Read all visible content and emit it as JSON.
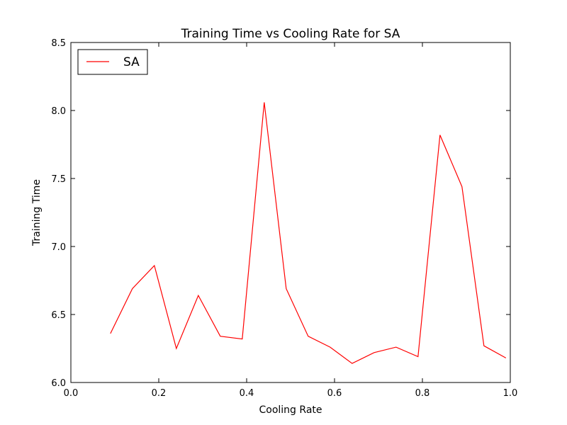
{
  "chart_data": {
    "type": "line",
    "title": "Training Time vs Cooling Rate for SA",
    "xlabel": "Cooling Rate",
    "ylabel": "Training Time",
    "xlim": [
      0.0,
      1.0
    ],
    "ylim": [
      6.0,
      8.5
    ],
    "x_ticks": [
      "0.0",
      "0.2",
      "0.4",
      "0.6",
      "0.8",
      "1.0"
    ],
    "y_ticks": [
      "6.0",
      "6.5",
      "7.0",
      "7.5",
      "8.0",
      "8.5"
    ],
    "grid": false,
    "legend_position": "top-left",
    "series": [
      {
        "name": "SA",
        "color": "#ff0000",
        "x": [
          0.09,
          0.14,
          0.19,
          0.24,
          0.29,
          0.34,
          0.39,
          0.44,
          0.49,
          0.54,
          0.59,
          0.64,
          0.69,
          0.74,
          0.79,
          0.84,
          0.89,
          0.94,
          0.99
        ],
        "y": [
          6.36,
          6.69,
          6.86,
          6.25,
          6.64,
          6.34,
          6.32,
          8.06,
          6.69,
          6.34,
          6.26,
          6.14,
          6.22,
          6.26,
          6.19,
          7.82,
          7.44,
          6.27,
          6.18
        ]
      }
    ]
  }
}
